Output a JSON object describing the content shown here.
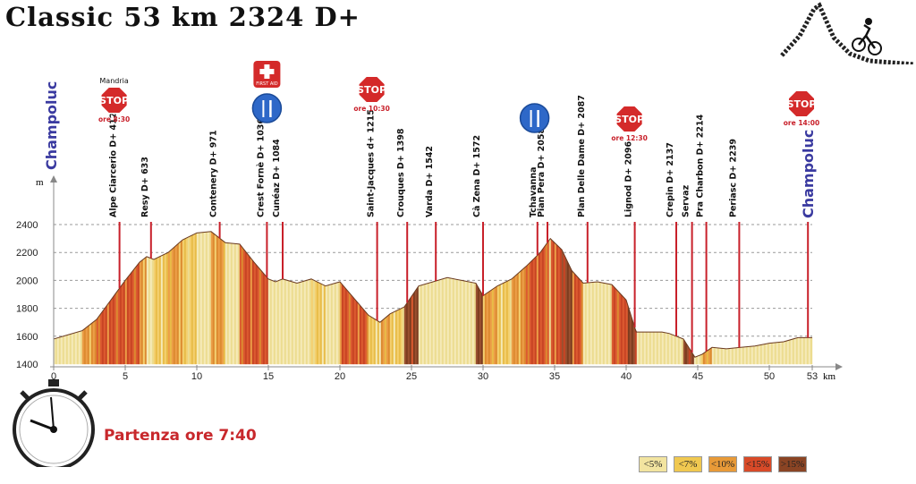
{
  "title": "Classic 53 km 2324 D+",
  "partenza": "Partenza ore 7:40",
  "chart_data": {
    "type": "area",
    "ylabel": "m",
    "xlabel": "km",
    "xlim": [
      0,
      55
    ],
    "ylim": [
      1400,
      2500
    ],
    "x_ticks": [
      0,
      5,
      10,
      15,
      20,
      25,
      30,
      35,
      40,
      45,
      50,
      53
    ],
    "y_ticks": [
      1400,
      1600,
      1800,
      2000,
      2200,
      2400
    ],
    "profile": {
      "x": [
        0,
        1,
        2,
        3,
        4,
        5,
        6,
        6.5,
        7,
        8,
        9,
        10,
        11,
        12,
        13,
        14,
        15,
        15.5,
        16,
        17,
        18,
        19,
        20,
        21,
        22,
        22.8,
        23.5,
        24.5,
        25.5,
        26.5,
        27.5,
        28.5,
        29.5,
        30,
        31,
        32,
        33,
        34,
        34.7,
        35.5,
        36.2,
        37,
        38,
        39,
        40,
        40.7,
        41.5,
        42.5,
        43,
        44,
        44.8,
        45.3,
        46,
        47,
        48,
        49,
        50,
        51,
        52,
        53
      ],
      "y": [
        1580,
        1610,
        1640,
        1720,
        1860,
        2000,
        2130,
        2170,
        2150,
        2200,
        2290,
        2340,
        2350,
        2270,
        2260,
        2130,
        2010,
        1990,
        2010,
        1980,
        2010,
        1960,
        1990,
        1870,
        1750,
        1700,
        1760,
        1810,
        1960,
        1990,
        2020,
        2000,
        1980,
        1890,
        1960,
        2010,
        2100,
        2200,
        2300,
        2220,
        2070,
        1980,
        1990,
        1970,
        1860,
        1630,
        1630,
        1630,
        1620,
        1580,
        1450,
        1470,
        1520,
        1510,
        1520,
        1530,
        1550,
        1560,
        1590,
        1590
      ]
    },
    "waypoints": [
      {
        "km": 4.6,
        "label": "Alpe Ciarcerio D+ 412"
      },
      {
        "km": 6.8,
        "label": "Resy D+ 633"
      },
      {
        "km": 11.6,
        "label": "Contenery D+ 971"
      },
      {
        "km": 14.9,
        "label": "Crest Fornè D+ 1036"
      },
      {
        "km": 16.0,
        "label": "Cunéaz D+ 1084"
      },
      {
        "km": 22.6,
        "label": "Saint-Jacques d+ 1215"
      },
      {
        "km": 24.7,
        "label": "Crouques D+ 1398"
      },
      {
        "km": 26.7,
        "label": "Varda D+ 1542"
      },
      {
        "km": 30.0,
        "label": "Cà Zena D+ 1572"
      },
      {
        "km": 33.8,
        "label": "Tchavanna"
      },
      {
        "km": 34.5,
        "label": "Pian Pera D+ 2058"
      },
      {
        "km": 37.3,
        "label": "Plan Delle Dame D+ 2087"
      },
      {
        "km": 40.6,
        "label": "Lignod D+ 2096"
      },
      {
        "km": 43.5,
        "label": "Crepin D+ 2137"
      },
      {
        "km": 44.6,
        "label": "Servaz"
      },
      {
        "km": 45.6,
        "label": "Pra Charbon D+ 2214"
      },
      {
        "km": 47.9,
        "label": "Periasc D+ 2239"
      }
    ],
    "start_label": "Champoluc",
    "end_label": "Champoluc",
    "checkpoints": [
      {
        "km": 4.6,
        "top": "Mandria",
        "text": "STOP",
        "time": "ore 8:30"
      },
      {
        "km": 22.6,
        "top": "",
        "text": "STOP",
        "time": "ore 10:30"
      },
      {
        "km": 40.6,
        "top": "",
        "text": "STOP",
        "time": "ore 12:30"
      },
      {
        "km": 52.7,
        "top": "",
        "text": "STOP",
        "time": "ore 14:00"
      }
    ],
    "first_aid": {
      "km": 14.9,
      "text": "FIRST AID"
    },
    "food": [
      {
        "km": 14.9
      },
      {
        "km": 33.6
      }
    ],
    "legend": [
      {
        "label": "<5%",
        "color": "#f2e4a0"
      },
      {
        "label": "<7%",
        "color": "#f0c850"
      },
      {
        "label": "<10%",
        "color": "#e89a38"
      },
      {
        "label": "<15%",
        "color": "#d84a28"
      },
      {
        "label": ">15%",
        "color": "#8a4424"
      }
    ]
  }
}
